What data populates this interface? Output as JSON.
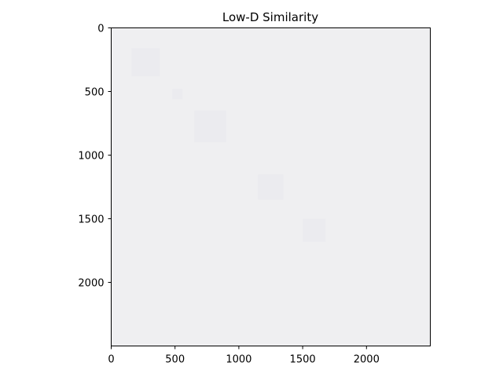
{
  "chart_data": {
    "type": "heatmap",
    "title": "Low-D Similarity",
    "xlabel": "",
    "ylabel": "",
    "x_range": [
      0,
      2500
    ],
    "y_range": [
      0,
      2500
    ],
    "y_inverted": true,
    "x_ticks": [
      0,
      500,
      1000,
      1500,
      2000
    ],
    "y_ticks": [
      0,
      500,
      1000,
      1500,
      2000
    ],
    "x_tick_labels": [
      "0",
      "500",
      "1000",
      "1500",
      "2000"
    ],
    "y_tick_labels": [
      "0",
      "500",
      "1000",
      "1500",
      "2000"
    ],
    "grid": false,
    "colors": {
      "background_fill": "#efeff1",
      "diagonal_faint": "#e6e6ea"
    },
    "diagonal_blocks": [
      [
        160,
        380
      ],
      [
        480,
        560
      ],
      [
        650,
        900
      ],
      [
        1150,
        1350
      ],
      [
        1500,
        1680
      ]
    ]
  }
}
